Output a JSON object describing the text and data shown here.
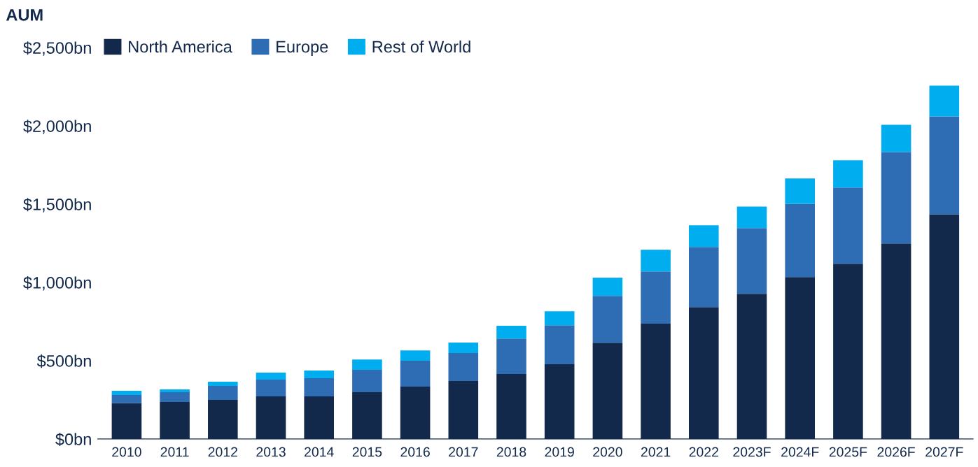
{
  "chart_data": {
    "type": "bar",
    "title": "AUM",
    "stacked": true,
    "legend": "top left",
    "grid": false,
    "categories": [
      "2010",
      "2011",
      "2012",
      "2013",
      "2014",
      "2015",
      "2016",
      "2017",
      "2018",
      "2019",
      "2020",
      "2021",
      "2022",
      "2023F",
      "2024F",
      "2025F",
      "2026F",
      "2027F"
    ],
    "ylim": [
      0,
      2500
    ],
    "yticks": [
      {
        "value": 0,
        "label": "$0bn"
      },
      {
        "value": 500,
        "label": "$500bn"
      },
      {
        "value": 1000,
        "label": "$1,000bn"
      },
      {
        "value": 1500,
        "label": "$1,500bn"
      },
      {
        "value": 2000,
        "label": "$2,000bn"
      },
      {
        "value": 2500,
        "label": "$2,500bn"
      }
    ],
    "series": [
      {
        "name": "North America",
        "color": "#13294b",
        "values": [
          228,
          236,
          250,
          272,
          272,
          299,
          335,
          370,
          415,
          477,
          615,
          736,
          843,
          928,
          1035,
          1119,
          1249,
          1436
        ]
      },
      {
        "name": "Europe",
        "color": "#2e6db4",
        "values": [
          53,
          63,
          89,
          107,
          116,
          143,
          165,
          179,
          227,
          250,
          299,
          334,
          384,
          419,
          468,
          487,
          584,
          625
        ]
      },
      {
        "name": "Rest of World",
        "color": "#00aeef",
        "values": [
          27,
          18,
          27,
          45,
          49,
          66,
          66,
          67,
          81,
          89,
          116,
          139,
          138,
          138,
          161,
          174,
          174,
          196
        ]
      }
    ]
  }
}
